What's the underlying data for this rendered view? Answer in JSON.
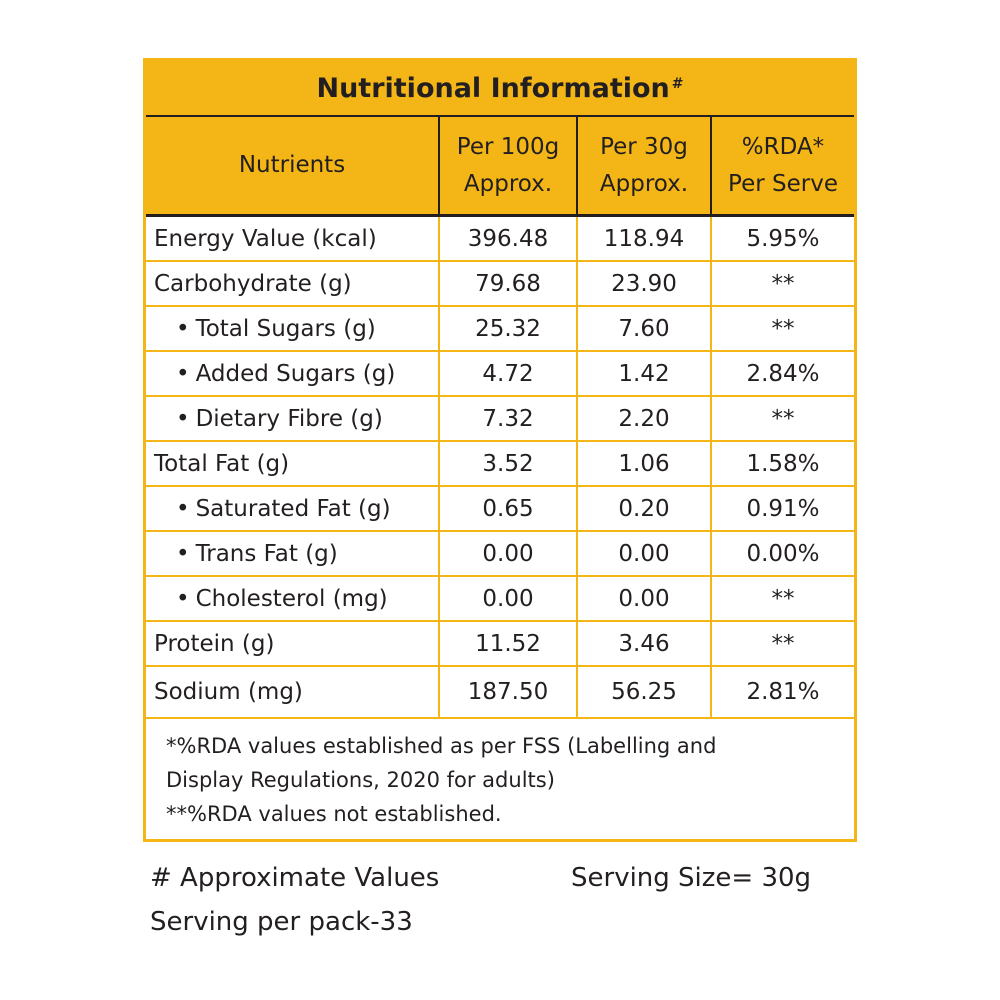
{
  "panel": {
    "title": "Nutritional Information",
    "title_mark": "#",
    "headers": {
      "nutrient": "Nutrients",
      "per100_line1": "Per 100g",
      "per100_line2": "Approx.",
      "per30_line1": "Per 30g",
      "per30_line2": "Approx.",
      "rda_line1": "%RDA*",
      "rda_line2": "Per Serve"
    },
    "rows": [
      {
        "nutrient": "Energy Value (kcal)",
        "per100": "396.48",
        "per30": "118.94",
        "rda": "5.95%",
        "sub": false
      },
      {
        "nutrient": "Carbohydrate (g)",
        "per100": "79.68",
        "per30": "23.90",
        "rda": "**",
        "sub": false
      },
      {
        "nutrient": "Total Sugars (g)",
        "per100": "25.32",
        "per30": "7.60",
        "rda": "**",
        "sub": true
      },
      {
        "nutrient": "Added Sugars (g)",
        "per100": "4.72",
        "per30": "1.42",
        "rda": "2.84%",
        "sub": true
      },
      {
        "nutrient": "Dietary Fibre (g)",
        "per100": "7.32",
        "per30": "2.20",
        "rda": "**",
        "sub": true
      },
      {
        "nutrient": "Total Fat (g)",
        "per100": "3.52",
        "per30": "1.06",
        "rda": "1.58%",
        "sub": false
      },
      {
        "nutrient": "Saturated Fat (g)",
        "per100": "0.65",
        "per30": "0.20",
        "rda": "0.91%",
        "sub": true
      },
      {
        "nutrient": "Trans Fat (g)",
        "per100": "0.00",
        "per30": "0.00",
        "rda": "0.00%",
        "sub": true
      },
      {
        "nutrient": "Cholesterol (mg)",
        "per100": "0.00",
        "per30": "0.00",
        "rda": "**",
        "sub": true
      },
      {
        "nutrient": "Protein (g)",
        "per100": "11.52",
        "per30": "3.46",
        "rda": "**",
        "sub": false
      },
      {
        "nutrient": "Sodium (mg)",
        "per100": "187.50",
        "per30": "56.25",
        "rda": "2.81%",
        "sub": false
      }
    ],
    "footnote_1a": "*%RDA values established as per FSS (Labelling and",
    "footnote_1b": "Display Regulations, 2020 for adults)",
    "footnote_2": "**%RDA values not established."
  },
  "below": {
    "approx": "# Approximate Values",
    "serving_size": "Serving Size= 30g",
    "servings_per_pack": "Serving per pack-33"
  },
  "colors": {
    "accent": "#f3b616",
    "text": "#231f20"
  }
}
